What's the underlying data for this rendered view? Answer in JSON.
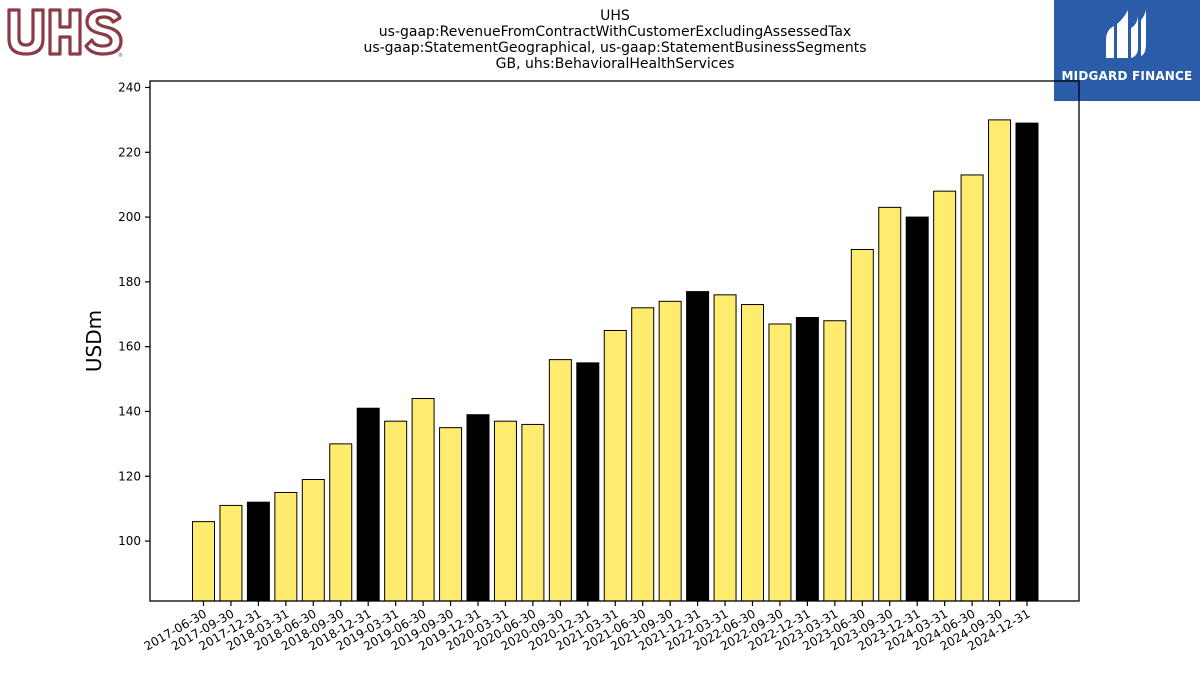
{
  "logos": {
    "left": {
      "text": "UHS",
      "color": "#8b3a46"
    },
    "right": {
      "text": "MIDGARD FINANCE",
      "background": "#2a5caa"
    }
  },
  "chart_data": {
    "type": "bar",
    "title_lines": [
      "UHS",
      "us-gaap:RevenueFromContractWithCustomerExcludingAssessedTax",
      "us-gaap:StatementGeographical, us-gaap:StatementBusinessSegments",
      "GB, uhs:BehavioralHealthServices"
    ],
    "xlabel": "",
    "ylabel": "USDm",
    "ylim": [
      81.5,
      242
    ],
    "yticks": [
      100,
      120,
      140,
      160,
      180,
      200,
      220,
      240
    ],
    "grid": false,
    "categories": [
      "2017-06-30",
      "2017-09-30",
      "2017-12-31",
      "2018-03-31",
      "2018-06-30",
      "2018-09-30",
      "2018-12-31",
      "2019-03-31",
      "2019-06-30",
      "2019-09-30",
      "2019-12-31",
      "2020-03-31",
      "2020-06-30",
      "2020-09-30",
      "2020-12-31",
      "2021-03-31",
      "2021-06-30",
      "2021-09-30",
      "2021-12-31",
      "2022-03-31",
      "2022-06-30",
      "2022-09-30",
      "2022-12-31",
      "2023-03-31",
      "2023-06-30",
      "2023-09-30",
      "2023-12-31",
      "2024-03-31",
      "2024-06-30",
      "2024-09-30",
      "2024-12-31"
    ],
    "values": [
      106,
      111,
      112,
      115,
      119,
      130,
      141,
      137,
      144,
      135,
      139,
      137,
      136,
      156,
      155,
      165,
      172,
      174,
      177,
      176,
      173,
      167,
      169,
      168,
      190,
      203,
      200,
      208,
      213,
      230,
      229
    ],
    "colors": {
      "quarter": "#ffec6e",
      "year_end": "#000000",
      "edge": "#000000"
    },
    "year_end_flags": [
      false,
      false,
      true,
      false,
      false,
      false,
      true,
      false,
      false,
      false,
      true,
      false,
      false,
      false,
      true,
      false,
      false,
      false,
      true,
      false,
      false,
      false,
      true,
      false,
      false,
      false,
      true,
      false,
      false,
      false,
      true
    ]
  }
}
